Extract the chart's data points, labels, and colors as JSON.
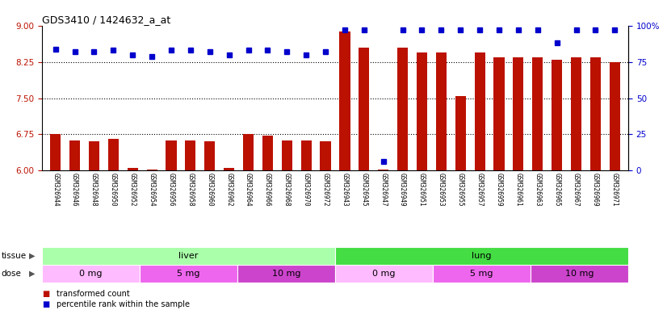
{
  "title": "GDS3410 / 1424632_a_at",
  "samples": [
    "GSM326944",
    "GSM326946",
    "GSM326948",
    "GSM326950",
    "GSM326952",
    "GSM326954",
    "GSM326956",
    "GSM326958",
    "GSM326960",
    "GSM326962",
    "GSM326964",
    "GSM326966",
    "GSM326968",
    "GSM326970",
    "GSM326972",
    "GSM326943",
    "GSM326945",
    "GSM326947",
    "GSM326949",
    "GSM326951",
    "GSM326953",
    "GSM326955",
    "GSM326957",
    "GSM326959",
    "GSM326961",
    "GSM326963",
    "GSM326965",
    "GSM326967",
    "GSM326969",
    "GSM326971"
  ],
  "bar_values": [
    6.75,
    6.62,
    6.6,
    6.65,
    6.05,
    6.02,
    6.62,
    6.62,
    6.6,
    6.05,
    6.75,
    6.72,
    6.62,
    6.62,
    6.6,
    8.88,
    8.55,
    6.02,
    8.55,
    8.45,
    8.45,
    7.55,
    8.45,
    8.35,
    8.35,
    8.35,
    8.3,
    8.35,
    8.35,
    8.25
  ],
  "percentile_values": [
    84,
    82,
    82,
    83,
    80,
    79,
    83,
    83,
    82,
    80,
    83,
    83,
    82,
    80,
    82,
    97,
    97,
    6,
    97,
    97,
    97,
    97,
    97,
    97,
    97,
    97,
    88,
    97,
    97,
    97
  ],
  "bar_color": "#BB1100",
  "percentile_color": "#0000CC",
  "ylim_left": [
    6.0,
    9.0
  ],
  "ylim_right": [
    0,
    100
  ],
  "yticks_left": [
    6.0,
    6.75,
    7.5,
    8.25,
    9.0
  ],
  "yticks_right": [
    0,
    25,
    50,
    75,
    100
  ],
  "ytick_right_labels": [
    "0",
    "25",
    "50",
    "75",
    "100%"
  ],
  "hlines": [
    6.75,
    7.5,
    8.25
  ],
  "tissue_groups": [
    {
      "label": "liver",
      "start": 0,
      "end": 15,
      "color": "#AAFFAA"
    },
    {
      "label": "lung",
      "start": 15,
      "end": 30,
      "color": "#44DD44"
    }
  ],
  "dose_groups": [
    {
      "label": "0 mg",
      "start": 0,
      "end": 5,
      "color": "#FFBBFF"
    },
    {
      "label": "5 mg",
      "start": 5,
      "end": 10,
      "color": "#EE66EE"
    },
    {
      "label": "10 mg",
      "start": 10,
      "end": 15,
      "color": "#CC44CC"
    },
    {
      "label": "0 mg",
      "start": 15,
      "end": 20,
      "color": "#FFBBFF"
    },
    {
      "label": "5 mg",
      "start": 20,
      "end": 25,
      "color": "#EE66EE"
    },
    {
      "label": "10 mg",
      "start": 25,
      "end": 30,
      "color": "#CC44CC"
    }
  ],
  "tissue_label": "tissue",
  "dose_label": "dose",
  "legend_bar_label": "transformed count",
  "legend_pct_label": "percentile rank within the sample",
  "tick_bg_color": "#DDDDDD",
  "plot_bg_color": "#FFFFFF"
}
